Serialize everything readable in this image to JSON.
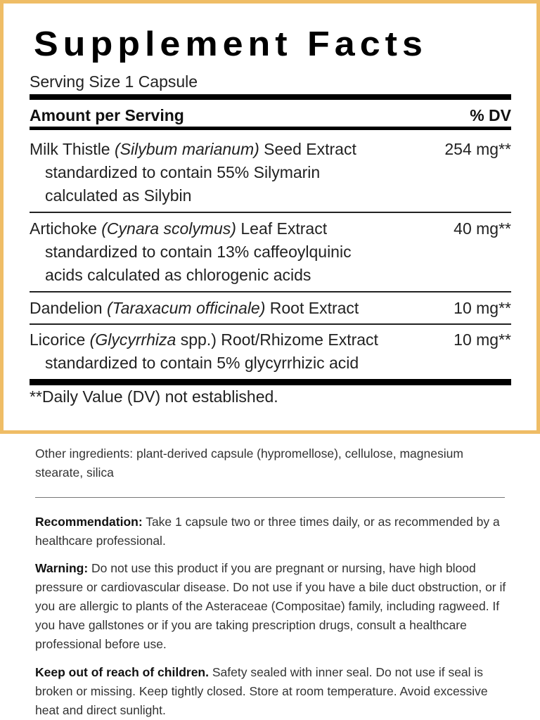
{
  "panel": {
    "title": "Supplement Facts",
    "serving_size": "Serving Size 1 Capsule",
    "header_left": "Amount per Serving",
    "header_right": "% DV",
    "border_color": "#efbd66",
    "ingredients": [
      {
        "name": "Milk Thistle ",
        "latin": "(Silybum marianum)",
        "rest": " Seed Extract",
        "amount": "254 mg**",
        "sub": [
          "standardized to contain 55% Silymarin",
          "calculated as Silybin"
        ]
      },
      {
        "name": "Artichoke ",
        "latin": "(Cynara scolymus)",
        "rest": " Leaf Extract",
        "amount": "40 mg**",
        "sub": [
          "standardized to contain 13% caffeoylquinic",
          "acids calculated as chlorogenic acids"
        ]
      },
      {
        "name": "Dandelion ",
        "latin": "(Taraxacum officinale)",
        "rest": " Root Extract",
        "amount": "10 mg**",
        "sub": []
      },
      {
        "name": "Licorice ",
        "latin": "(Glycyrrhiza",
        "rest": " spp.) Root/Rhizome Extract",
        "amount": "10 mg**",
        "sub": [
          "standardized to contain 5% glycyrrhizic acid"
        ]
      }
    ],
    "footnote": "**Daily Value (DV) not established."
  },
  "other_ingredients": "Other ingredients: plant-derived capsule (hypromellose), cellulose, magnesium stearate, silica",
  "recommendation": {
    "label": "Recommendation:",
    "text": " Take 1 capsule two or three times daily, or as recommended by a healthcare professional."
  },
  "warning": {
    "label": "Warning:",
    "text": " Do not use this product if you are pregnant or nursing, have high blood pressure or cardiovascular disease. Do not use if you have a bile duct obstruction, or if you are allergic to plants of the Asteraceae (Compositae) family, including ragweed. If you have gallstones or if you are taking prescription drugs, consult a healthcare professional before use."
  },
  "keep_out": {
    "label": "Keep out of reach of children.",
    "text": " Safety sealed with inner seal. Do not use if seal is broken or missing. Keep tightly closed. Store at room temperature. Avoid excessive heat and direct sunlight."
  }
}
